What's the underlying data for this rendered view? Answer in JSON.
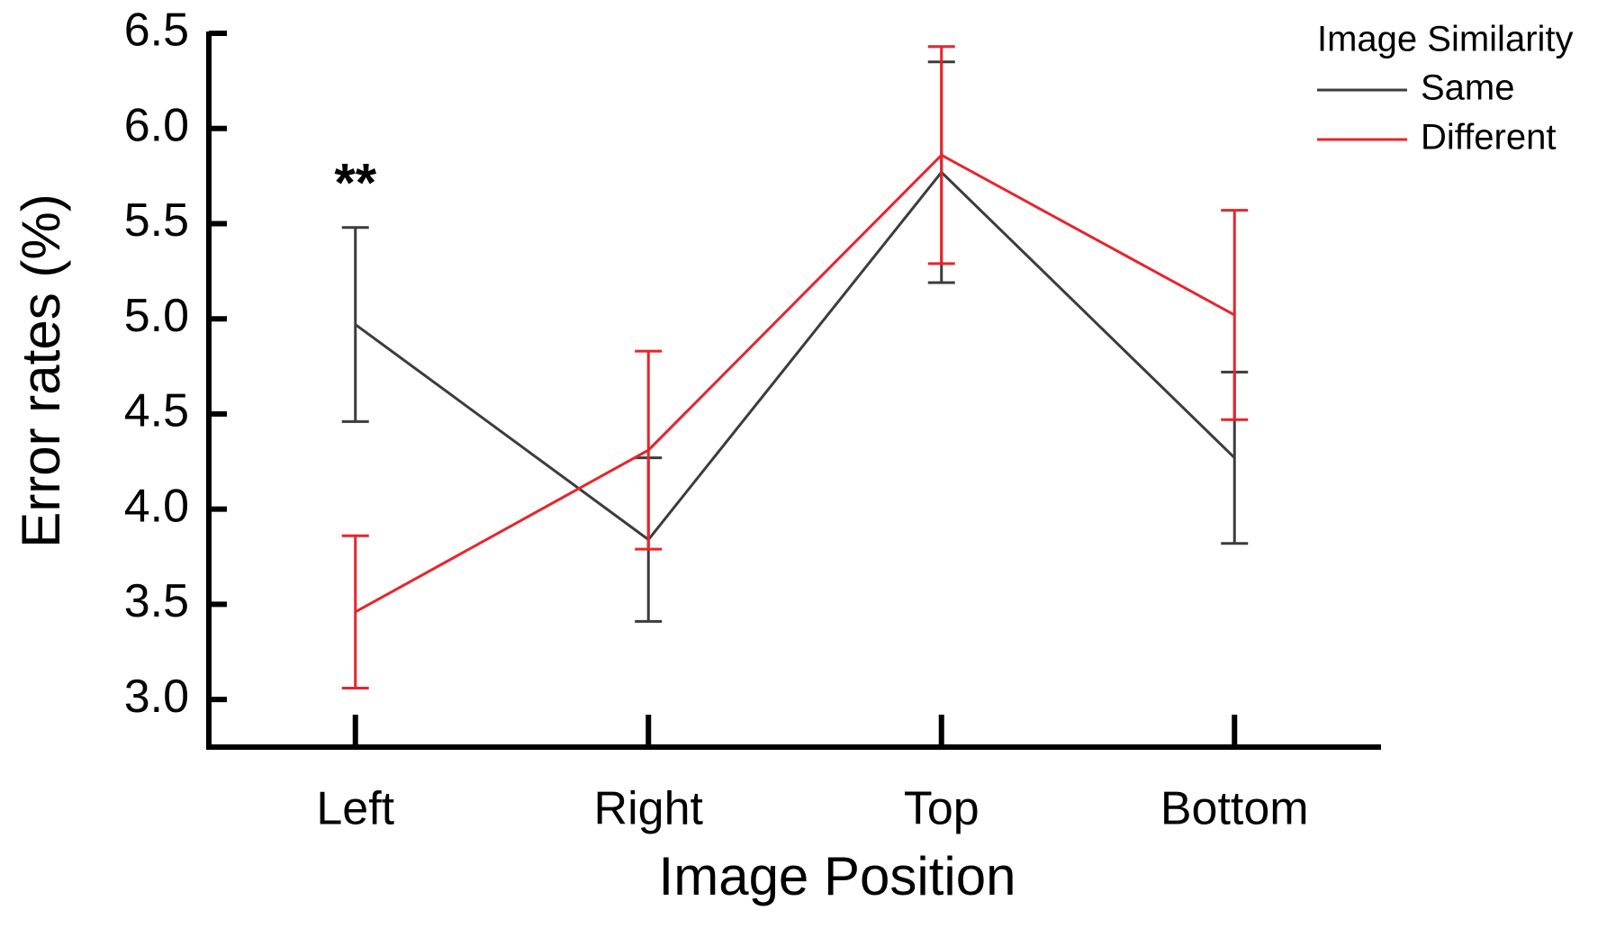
{
  "chart_data": {
    "type": "line",
    "x_label": "Image Position",
    "y_label": "Error rates (%)",
    "categories": [
      "Left",
      "Right",
      "Top",
      "Bottom"
    ],
    "series": [
      {
        "name": "Same",
        "color": "#3c3c3c",
        "values": [
          4.97,
          3.84,
          5.77,
          4.27
        ],
        "errors": [
          0.51,
          0.43,
          0.58,
          0.45
        ]
      },
      {
        "name": "Different",
        "color": "#e8242b",
        "values": [
          3.46,
          4.31,
          5.86,
          5.02
        ],
        "errors": [
          0.4,
          0.52,
          0.57,
          0.55
        ]
      }
    ],
    "ylim": [
      2.75,
      6.5
    ],
    "yticks": [
      {
        "value": 3,
        "label": "3.0"
      },
      3.5,
      {
        "value": 4,
        "label": "4.0"
      },
      4.5,
      {
        "value": 5,
        "label": "5.0"
      },
      5.5,
      {
        "value": 6,
        "label": "6.0"
      },
      6.5
    ],
    "legend_title": "Image Similarity",
    "legend_position": "top-right",
    "annotations": [
      {
        "text": "**",
        "category": "Left",
        "y": 5.75
      }
    ]
  }
}
